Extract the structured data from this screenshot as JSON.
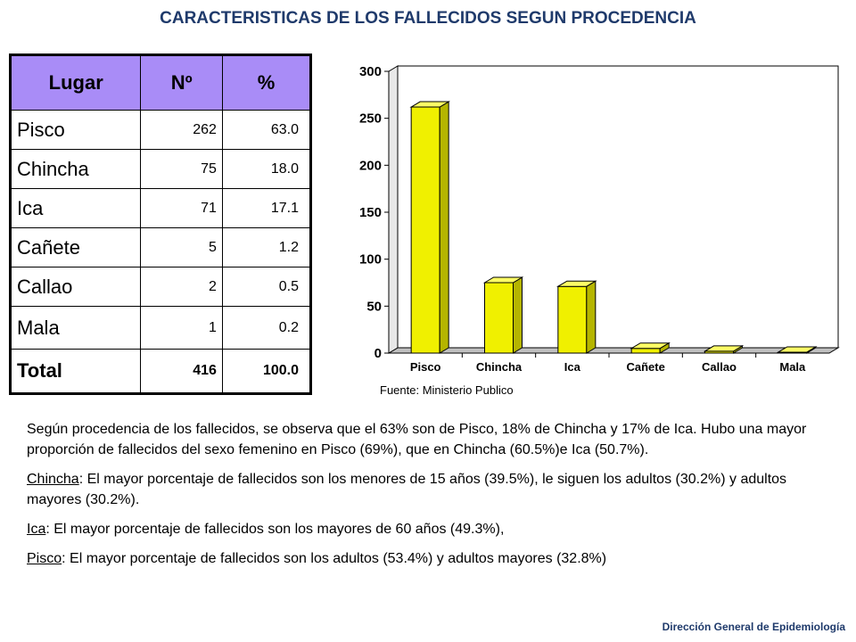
{
  "title": "CARACTERISTICAS DE LOS FALLECIDOS SEGUN PROCEDENCIA",
  "table": {
    "headers": [
      "Lugar",
      "Nº",
      "%"
    ],
    "rows": [
      {
        "lugar": "Pisco",
        "n": "262",
        "pct": "63.0"
      },
      {
        "lugar": "Chincha",
        "n": "75",
        "pct": "18.0"
      },
      {
        "lugar": "Ica",
        "n": "71",
        "pct": "17.1"
      },
      {
        "lugar": "Cañete",
        "n": "5",
        "pct": "1.2"
      },
      {
        "lugar": "Callao",
        "n": "2",
        "pct": "0.5"
      },
      {
        "lugar": "Mala",
        "n": "1",
        "pct": "0.2"
      }
    ],
    "total": {
      "lugar": "Total",
      "n": "416",
      "pct": "100.0"
    },
    "header_color": "#a98cf7"
  },
  "chart_data": {
    "type": "bar",
    "categories": [
      "Pisco",
      "Chincha",
      "Ica",
      "Cañete",
      "Callao",
      "Mala"
    ],
    "values": [
      262,
      75,
      71,
      5,
      2,
      1
    ],
    "ylim": [
      0,
      300
    ],
    "yticks": [
      0,
      50,
      100,
      150,
      200,
      250,
      300
    ],
    "bar_color": "#f0f000",
    "style": "3d",
    "grid": false
  },
  "source": "Fuente: Ministerio Publico",
  "text": {
    "p1": "Según procedencia de los fallecidos, se observa que el 63% son de Pisco, 18% de Chincha y 17% de Ica. Hubo una mayor proporción de fallecidos del sexo femenino en Pisco (69%), que en Chincha (60.5%)e Ica (50.7%).",
    "p2_label": "Chincha",
    "p2_text": ": El mayor porcentaje de fallecidos son los menores de 15 años (39.5%), le siguen los adultos (30.2%) y adultos mayores (30.2%).",
    "p3_label": "Ica",
    "p3_text": ": El mayor porcentaje de fallecidos son los mayores de 60 años (49.3%),",
    "p4_label": "Pisco",
    "p4_text": ": El mayor porcentaje de fallecidos son los adultos (53.4%) y adultos mayores (32.8%)"
  },
  "footer": "Dirección General de Epidemiología",
  "colors": {
    "title": "#1f3a6b"
  }
}
